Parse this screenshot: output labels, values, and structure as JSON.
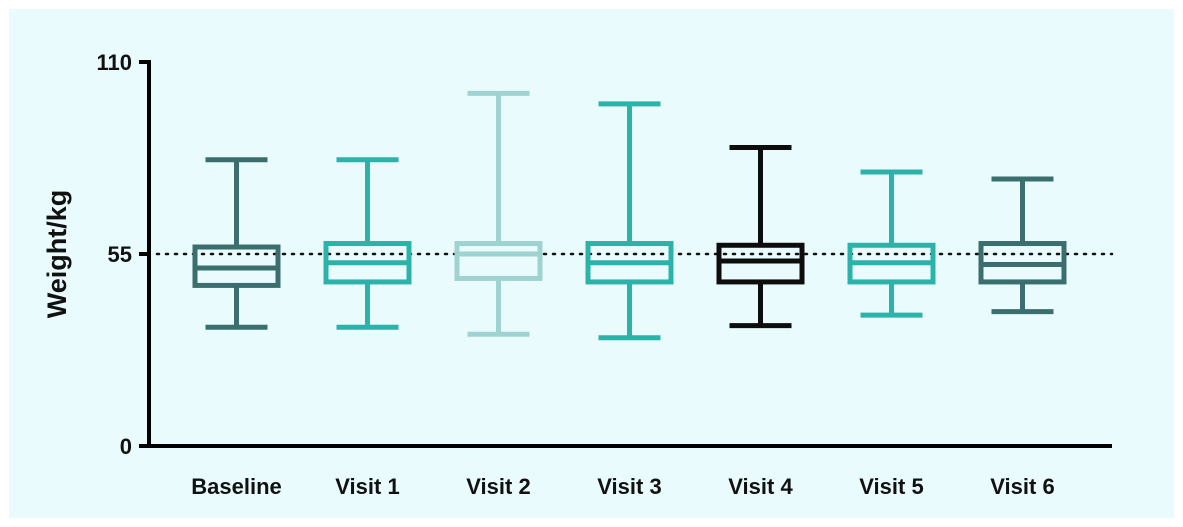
{
  "chart_data": {
    "type": "box",
    "ylabel": "Weight/kg",
    "xlabel": "",
    "ylim": [
      0,
      110
    ],
    "yticks": [
      0,
      55,
      110
    ],
    "reference_line": 55,
    "categories": [
      "Baseline",
      "Visit 1",
      "Visit 2",
      "Visit 3",
      "Visit 4",
      "Visit 5",
      "Visit 6"
    ],
    "boxes": [
      {
        "category": "Baseline",
        "min": 34,
        "q1": 46,
        "median": 51,
        "q3": 57,
        "max": 82,
        "color": "#3b6e6e"
      },
      {
        "category": "Visit 1",
        "min": 34,
        "q1": 47,
        "median": 52.5,
        "q3": 58,
        "max": 82,
        "color": "#2bb3aa"
      },
      {
        "category": "Visit 2",
        "min": 32,
        "q1": 48,
        "median": 55,
        "q3": 58,
        "max": 101,
        "color": "#9fd3d1"
      },
      {
        "category": "Visit 3",
        "min": 31,
        "q1": 47,
        "median": 52.5,
        "q3": 58,
        "max": 98,
        "color": "#2bb3aa"
      },
      {
        "category": "Visit 4",
        "min": 34.5,
        "q1": 47,
        "median": 53,
        "q3": 57.5,
        "max": 85.5,
        "color": "#0d0d0d"
      },
      {
        "category": "Visit 5",
        "min": 37.5,
        "q1": 47,
        "median": 52.5,
        "q3": 57.5,
        "max": 78.5,
        "color": "#2bb3aa"
      },
      {
        "category": "Visit 6",
        "min": 38.5,
        "q1": 47,
        "median": 52,
        "q3": 58,
        "max": 76.5,
        "color": "#3b6e6e"
      }
    ]
  }
}
